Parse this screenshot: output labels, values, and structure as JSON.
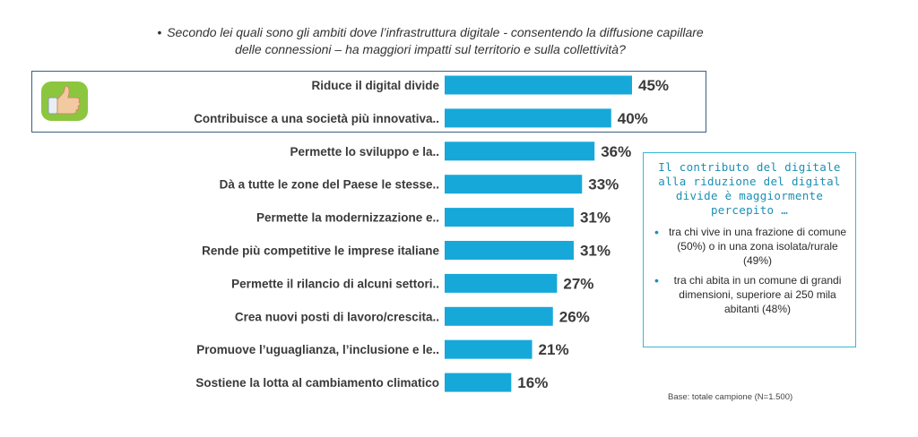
{
  "question": {
    "line1": "Secondo lei quali sono gli ambiti dove l’infrastruttura digitale - consentendo la diffusione capillare",
    "line2": "delle connessioni – ha maggiori impatti sul territorio e sulla collettività?"
  },
  "colors": {
    "bar": "#17a8da",
    "highlight_border": "#3d5f7f",
    "callout_border": "#37b7d8",
    "callout_title": "#1b8fb3",
    "thumb_bg": "#8cc63f"
  },
  "thumb_icon": "thumbs-up-icon",
  "chart_data": {
    "type": "bar",
    "orientation": "horizontal",
    "categories": [
      "Riduce il digital divide",
      "Contribuisce a una società più innovativa..",
      "Permette lo sviluppo e la..",
      "Dà a tutte le zone del Paese le stesse..",
      "Permette la modernizzazione e..",
      "Rende più competitive le imprese italiane",
      "Permette il rilancio di alcuni settori..",
      "Crea nuovi posti di lavoro/crescita..",
      "Promuove l’uguaglianza, l’inclusione e le..",
      "Sostiene la lotta al cambiamento climatico"
    ],
    "values": [
      45,
      40,
      36,
      33,
      31,
      31,
      27,
      26,
      21,
      16
    ],
    "value_labels": [
      "45%",
      "40%",
      "36%",
      "33%",
      "31%",
      "31%",
      "27%",
      "26%",
      "21%",
      "16%"
    ],
    "highlighted": [
      0,
      1
    ]
  },
  "callout": {
    "title": "Il contributo del digitale alla riduzione del digital divide è maggiormente percepito …",
    "bullets": [
      "tra chi vive in una frazione di comune (50%) o in una zona isolata/rurale (49%)",
      "tra chi abita in un comune di grandi dimensioni,  superiore ai 250 mila abitanti (48%)"
    ]
  },
  "base_note": "Base: totale campione (N=1.500)"
}
